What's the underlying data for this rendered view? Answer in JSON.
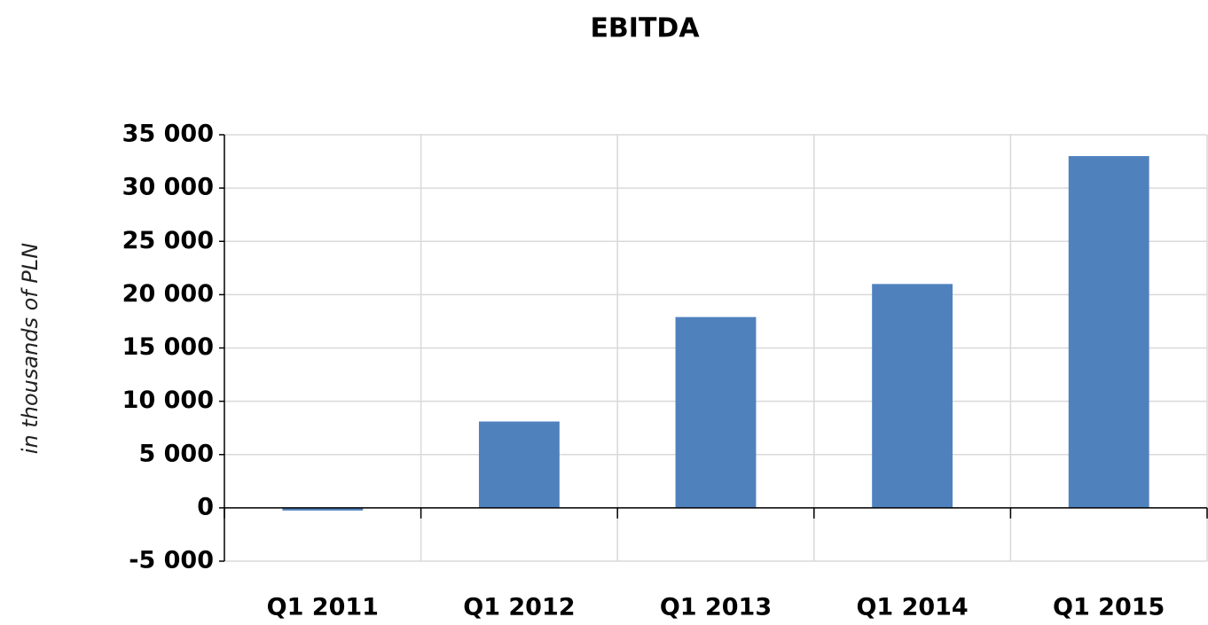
{
  "chart_data": {
    "type": "bar",
    "title": "EBITDA",
    "y_label": "in thousands of PLN",
    "categories": [
      "Q1 2011",
      "Q1 2012",
      "Q1 2013",
      "Q1 2014",
      "Q1 2015"
    ],
    "values": [
      -250,
      8100,
      17900,
      21000,
      33000
    ],
    "color": "#4f81bd",
    "ylim": [
      -5000,
      35000
    ],
    "yticks": [
      {
        "value": -5000,
        "label": "-5 000"
      },
      0,
      {
        "value": 5000,
        "label": "5 000"
      },
      {
        "value": 10000,
        "label": "10 000"
      },
      {
        "value": 15000,
        "label": "15 000"
      },
      {
        "value": 20000,
        "label": "20 000"
      },
      {
        "value": 25000,
        "label": "25 000"
      },
      {
        "value": 30000,
        "label": "30 000"
      },
      {
        "value": 35000,
        "label": "35 000"
      }
    ],
    "grid": true
  }
}
